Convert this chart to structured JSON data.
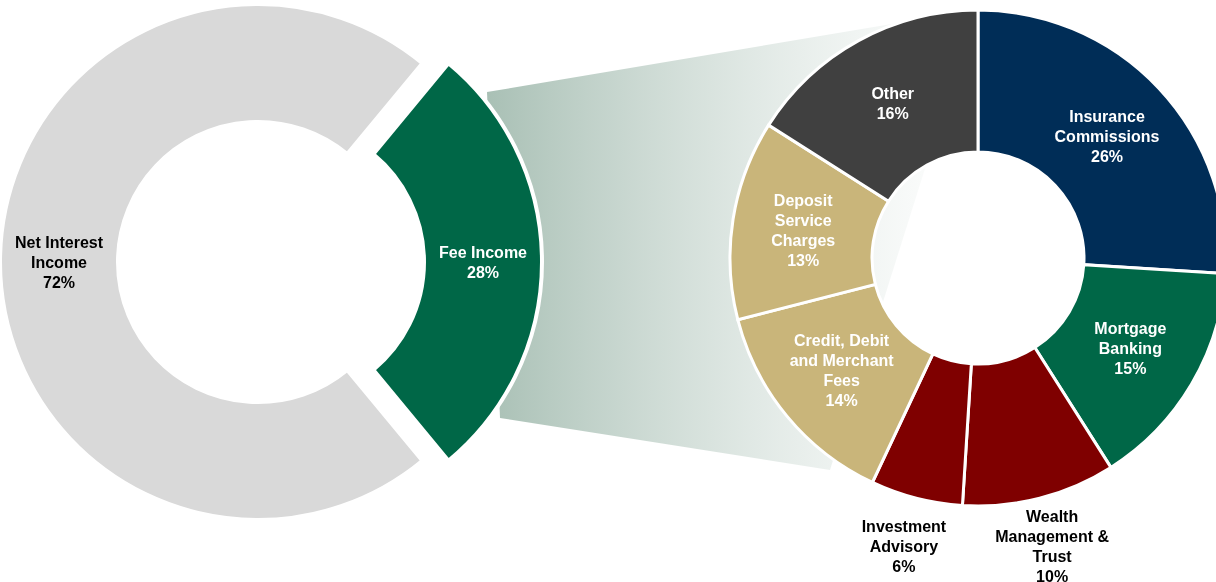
{
  "chart_data": [
    {
      "type": "donut",
      "categories": [
        "Net Interest Income",
        "Fee Income"
      ],
      "values": [
        72,
        28
      ],
      "colors": [
        "#d9d9d9",
        "#006747"
      ],
      "value_labels": [
        "72%",
        "28%"
      ]
    },
    {
      "type": "donut",
      "categories": [
        "Insurance Commissions",
        "Mortgage Banking",
        "Wealth Management & Trust",
        "Investment Advisory",
        "Credit, Debit and Merchant Fees",
        "Deposit Service Charges",
        "Other"
      ],
      "values": [
        26,
        15,
        10,
        6,
        14,
        13,
        16
      ],
      "colors": [
        "#002d57",
        "#006747",
        "#7f0000",
        "#7f0000",
        "#c9b57a",
        "#c9b57a",
        "#404040"
      ],
      "value_labels": [
        "26%",
        "15%",
        "10%",
        "6%",
        "14%",
        "13%",
        "16%"
      ]
    }
  ]
}
